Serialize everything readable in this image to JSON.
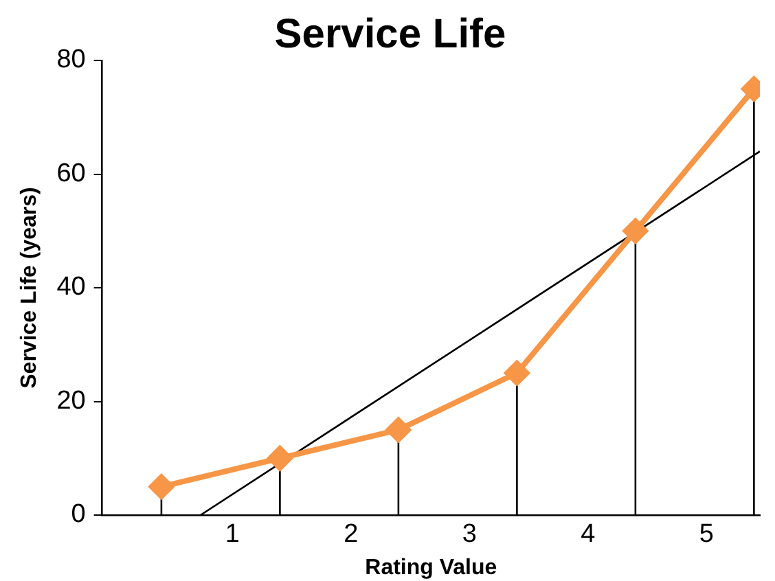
{
  "chart_data": {
    "type": "line",
    "title": "Service Life",
    "xlabel": "Rating Value",
    "ylabel": "Service Life (years)",
    "x": [
      0.4,
      1.4,
      2.4,
      3.4,
      4.4,
      5.4
    ],
    "xlim": [
      -0.1,
      5.45
    ],
    "xticks": [
      1,
      2,
      3,
      4,
      5
    ],
    "ylim": [
      0,
      80
    ],
    "yticks": [
      0,
      20,
      40,
      60,
      80
    ],
    "grid": false,
    "legend": false,
    "series": [
      {
        "color": "#f79646",
        "marker": "diamond",
        "values": [
          5,
          10,
          15,
          25,
          50,
          75
        ],
        "errors": [
          [
            0,
            5
          ],
          [
            0,
            10
          ],
          [
            0,
            15
          ],
          [
            0,
            25
          ],
          [
            0,
            50
          ],
          [
            0,
            75
          ]
        ]
      },
      {
        "color": "#000000",
        "marker": "none",
        "x": [
          0.73,
          5.45
        ],
        "values": [
          0,
          64
        ]
      }
    ]
  }
}
